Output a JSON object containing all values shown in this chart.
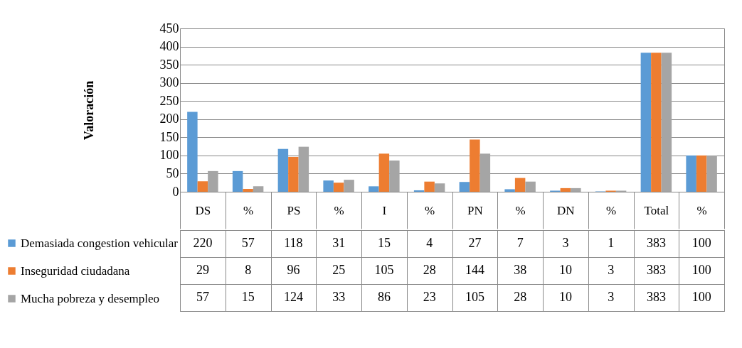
{
  "chart_data": {
    "type": "bar",
    "ylabel": "Valoración",
    "categories": [
      "DS",
      "%",
      "PS",
      "%",
      "I",
      "%",
      "PN",
      "%",
      "DN",
      "%",
      "Total",
      "%"
    ],
    "series": [
      {
        "name": "Demasiada congestion vehicular",
        "color": "#5b9bd5",
        "values": [
          220,
          57,
          118,
          31,
          15,
          4,
          27,
          7,
          3,
          1,
          383,
          100
        ]
      },
      {
        "name": "Inseguridad ciudadana",
        "color": "#ed7d31",
        "values": [
          29,
          8,
          96,
          25,
          105,
          28,
          144,
          38,
          10,
          3,
          383,
          100
        ]
      },
      {
        "name": "Mucha pobreza y desempleo",
        "color": "#a5a5a5",
        "values": [
          57,
          15,
          124,
          33,
          86,
          23,
          105,
          28,
          10,
          3,
          383,
          100
        ]
      }
    ],
    "ylim": [
      0,
      450
    ],
    "yticks": [
      0,
      50,
      100,
      150,
      200,
      250,
      300,
      350,
      400,
      450
    ],
    "grid": "y",
    "legend": "bottom left",
    "data_labels": true
  }
}
